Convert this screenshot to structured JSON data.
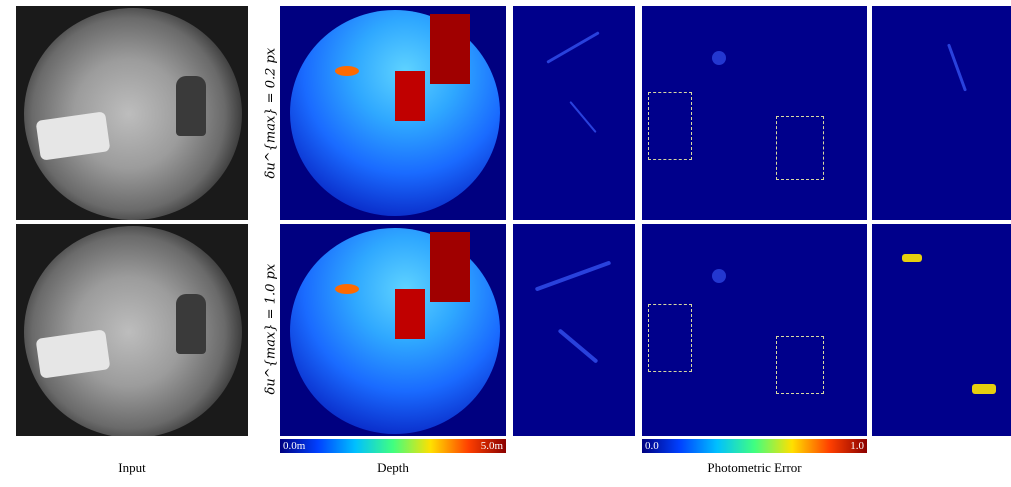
{
  "rows": [
    {
      "label": "δu^{max} = 0.2 px"
    },
    {
      "label": "δu^{max} = 1.0 px"
    }
  ],
  "columns": {
    "input": "Input",
    "depth": "Depth",
    "error": "Photometric Error"
  },
  "depth_colorbar": {
    "min": "0.0m",
    "max": "5.0m"
  },
  "error_colorbar": {
    "min": "0.0",
    "max": "1.0"
  },
  "colors": {
    "jet_low": "#000080",
    "jet_high": "#8b0000",
    "error_bg": "#00008b"
  }
}
